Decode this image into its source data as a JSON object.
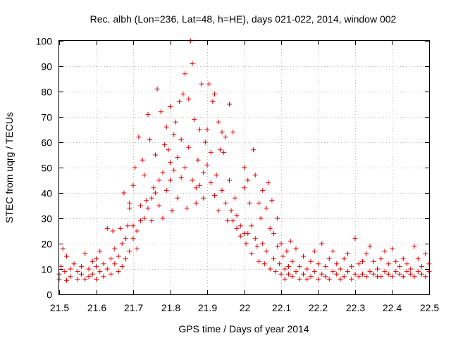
{
  "chart_data": {
    "type": "scatter",
    "title": "Rec. albh (Lon=236, Lat=48, h=HE), days 021-022, 2014, window 002",
    "xlabel": "GPS time / Days of year 2014",
    "ylabel": "STEC from uqrg / TECUs",
    "xlim": [
      21.5,
      22.5
    ],
    "ylim": [
      0,
      100
    ],
    "xticks": [
      "21.5",
      "21.6",
      "21.7",
      "21.8",
      "21.9",
      "22",
      "22.1",
      "22.2",
      "22.3",
      "22.4",
      "22.5"
    ],
    "yticks": [
      "0",
      "10",
      "20",
      "30",
      "40",
      "50",
      "60",
      "70",
      "80",
      "90",
      "100"
    ],
    "marker": "plus",
    "color": "#e00000",
    "grid": true,
    "series": [
      {
        "name": "STEC",
        "points": [
          [
            21.5,
            6
          ],
          [
            21.5,
            8
          ],
          [
            21.505,
            11
          ],
          [
            21.51,
            18
          ],
          [
            21.515,
            9
          ],
          [
            21.52,
            15
          ],
          [
            21.52,
            5.5
          ],
          [
            21.53,
            7
          ],
          [
            21.53,
            10
          ],
          [
            21.54,
            12
          ],
          [
            21.55,
            6
          ],
          [
            21.55,
            9
          ],
          [
            21.56,
            8
          ],
          [
            21.56,
            11
          ],
          [
            21.57,
            16
          ],
          [
            21.57,
            6
          ],
          [
            21.58,
            7
          ],
          [
            21.58,
            10
          ],
          [
            21.59,
            13
          ],
          [
            21.59,
            8
          ],
          [
            21.6,
            6
          ],
          [
            21.6,
            11
          ],
          [
            21.6,
            14
          ],
          [
            21.61,
            9
          ],
          [
            21.61,
            17
          ],
          [
            21.62,
            7
          ],
          [
            21.62,
            12
          ],
          [
            21.63,
            26
          ],
          [
            21.63,
            10
          ],
          [
            21.64,
            14
          ],
          [
            21.64,
            8
          ],
          [
            21.645,
            25
          ],
          [
            21.65,
            18
          ],
          [
            21.65,
            12
          ],
          [
            21.66,
            9
          ],
          [
            21.66,
            15
          ],
          [
            21.665,
            26
          ],
          [
            21.67,
            11
          ],
          [
            21.67,
            20
          ],
          [
            21.675,
            40
          ],
          [
            21.68,
            14
          ],
          [
            21.68,
            22
          ],
          [
            21.685,
            27
          ],
          [
            21.69,
            34
          ],
          [
            21.69,
            17
          ],
          [
            21.69,
            36
          ],
          [
            21.7,
            27
          ],
          [
            21.7,
            22
          ],
          [
            21.7,
            43
          ],
          [
            21.705,
            50
          ],
          [
            21.71,
            25
          ],
          [
            21.71,
            18
          ],
          [
            21.715,
            62
          ],
          [
            21.72,
            35
          ],
          [
            21.72,
            29
          ],
          [
            21.725,
            53
          ],
          [
            21.73,
            47
          ],
          [
            21.73,
            30
          ],
          [
            21.735,
            37
          ],
          [
            21.74,
            71
          ],
          [
            21.74,
            34
          ],
          [
            21.745,
            61
          ],
          [
            21.75,
            38
          ],
          [
            21.75,
            29
          ],
          [
            21.755,
            42
          ],
          [
            21.76,
            55
          ],
          [
            21.76,
            40
          ],
          [
            21.765,
            81
          ],
          [
            21.77,
            45
          ],
          [
            21.77,
            35
          ],
          [
            21.775,
            72
          ],
          [
            21.78,
            48
          ],
          [
            21.78,
            30
          ],
          [
            21.785,
            59
          ],
          [
            21.79,
            66
          ],
          [
            21.79,
            41
          ],
          [
            21.795,
            57
          ],
          [
            21.8,
            74
          ],
          [
            21.8,
            45
          ],
          [
            21.8,
            52
          ],
          [
            21.805,
            33
          ],
          [
            21.81,
            49
          ],
          [
            21.81,
            63
          ],
          [
            21.815,
            68
          ],
          [
            21.82,
            54
          ],
          [
            21.82,
            38
          ],
          [
            21.825,
            76
          ],
          [
            21.83,
            61
          ],
          [
            21.83,
            46
          ],
          [
            21.835,
            79
          ],
          [
            21.84,
            87
          ],
          [
            21.84,
            50
          ],
          [
            21.845,
            34
          ],
          [
            21.85,
            77
          ],
          [
            21.85,
            58
          ],
          [
            21.855,
            100
          ],
          [
            21.86,
            91
          ],
          [
            21.86,
            45
          ],
          [
            21.865,
            69
          ],
          [
            21.87,
            42
          ],
          [
            21.87,
            36
          ],
          [
            21.875,
            53
          ],
          [
            21.88,
            65
          ],
          [
            21.88,
            43
          ],
          [
            21.885,
            83
          ],
          [
            21.89,
            38
          ],
          [
            21.89,
            48
          ],
          [
            21.895,
            60
          ],
          [
            21.9,
            65
          ],
          [
            21.9,
            51
          ],
          [
            21.905,
            83
          ],
          [
            21.91,
            56
          ],
          [
            21.91,
            44
          ],
          [
            21.915,
            76
          ],
          [
            21.92,
            79
          ],
          [
            21.92,
            39
          ],
          [
            21.925,
            47
          ],
          [
            21.93,
            68
          ],
          [
            21.93,
            33
          ],
          [
            21.935,
            57
          ],
          [
            21.94,
            64
          ],
          [
            21.94,
            41
          ],
          [
            21.945,
            56
          ],
          [
            21.95,
            36
          ],
          [
            21.95,
            62
          ],
          [
            21.955,
            29
          ],
          [
            21.96,
            45
          ],
          [
            21.96,
            75
          ],
          [
            21.965,
            33
          ],
          [
            21.97,
            64
          ],
          [
            21.97,
            29
          ],
          [
            21.975,
            38
          ],
          [
            21.98,
            26
          ],
          [
            21.98,
            31
          ],
          [
            21.99,
            23
          ],
          [
            21.99,
            27
          ],
          [
            22.0,
            24
          ],
          [
            22.0,
            50
          ],
          [
            22.0,
            42
          ],
          [
            22.005,
            20
          ],
          [
            22.01,
            45
          ],
          [
            22.01,
            24
          ],
          [
            22.015,
            36
          ],
          [
            22.02,
            16
          ],
          [
            22.02,
            27
          ],
          [
            22.025,
            57
          ],
          [
            22.03,
            47
          ],
          [
            22.03,
            22
          ],
          [
            22.035,
            19
          ],
          [
            22.04,
            36
          ],
          [
            22.04,
            13
          ],
          [
            22.045,
            30
          ],
          [
            22.05,
            41
          ],
          [
            22.05,
            20
          ],
          [
            22.055,
            12
          ],
          [
            22.06,
            34
          ],
          [
            22.06,
            17
          ],
          [
            22.065,
            44
          ],
          [
            22.07,
            10
          ],
          [
            22.07,
            26
          ],
          [
            22.075,
            37
          ],
          [
            22.08,
            24
          ],
          [
            22.08,
            14
          ],
          [
            22.085,
            9
          ],
          [
            22.09,
            30
          ],
          [
            22.09,
            19
          ],
          [
            22.095,
            12
          ],
          [
            22.1,
            8
          ],
          [
            22.1,
            20
          ],
          [
            22.105,
            15
          ],
          [
            22.11,
            10
          ],
          [
            22.11,
            6
          ],
          [
            22.115,
            17
          ],
          [
            22.12,
            11
          ],
          [
            22.12,
            8
          ],
          [
            22.125,
            21
          ],
          [
            22.13,
            7
          ],
          [
            22.13,
            13
          ],
          [
            22.14,
            9
          ],
          [
            22.14,
            18
          ],
          [
            22.15,
            6
          ],
          [
            22.15,
            11
          ],
          [
            22.16,
            15
          ],
          [
            22.16,
            8
          ],
          [
            22.17,
            10
          ],
          [
            22.17,
            6
          ],
          [
            22.18,
            13
          ],
          [
            22.18,
            7
          ],
          [
            22.19,
            9
          ],
          [
            22.19,
            17
          ],
          [
            22.2,
            6
          ],
          [
            22.2,
            12
          ],
          [
            22.21,
            8
          ],
          [
            22.21,
            20
          ],
          [
            22.22,
            7
          ],
          [
            22.22,
            11
          ],
          [
            22.23,
            14
          ],
          [
            22.23,
            6
          ],
          [
            22.24,
            9
          ],
          [
            22.24,
            17
          ],
          [
            22.25,
            8
          ],
          [
            22.25,
            12
          ],
          [
            22.26,
            6
          ],
          [
            22.26,
            10
          ],
          [
            22.27,
            7
          ],
          [
            22.27,
            14
          ],
          [
            22.28,
            9
          ],
          [
            22.28,
            16
          ],
          [
            22.29,
            6
          ],
          [
            22.29,
            11
          ],
          [
            22.3,
            8
          ],
          [
            22.3,
            22
          ],
          [
            22.31,
            7
          ],
          [
            22.31,
            12
          ],
          [
            22.32,
            13
          ],
          [
            22.32,
            8
          ],
          [
            22.33,
            7
          ],
          [
            22.33,
            16
          ],
          [
            22.34,
            9
          ],
          [
            22.34,
            19
          ],
          [
            22.35,
            8
          ],
          [
            22.35,
            13
          ],
          [
            22.36,
            7
          ],
          [
            22.36,
            10
          ],
          [
            22.37,
            14
          ],
          [
            22.37,
            7
          ],
          [
            22.38,
            9
          ],
          [
            22.38,
            17
          ],
          [
            22.39,
            8
          ],
          [
            22.39,
            12
          ],
          [
            22.4,
            7
          ],
          [
            22.4,
            18
          ],
          [
            22.41,
            9
          ],
          [
            22.41,
            13
          ],
          [
            22.42,
            8
          ],
          [
            22.42,
            11
          ],
          [
            22.43,
            14
          ],
          [
            22.43,
            7
          ],
          [
            22.44,
            9
          ],
          [
            22.44,
            12
          ],
          [
            22.45,
            8
          ],
          [
            22.45,
            10
          ],
          [
            22.46,
            7
          ],
          [
            22.46,
            19
          ],
          [
            22.47,
            9
          ],
          [
            22.47,
            14
          ],
          [
            22.48,
            8
          ],
          [
            22.48,
            11
          ],
          [
            22.49,
            7
          ],
          [
            22.49,
            16
          ],
          [
            22.5,
            9
          ],
          [
            22.5,
            12
          ]
        ]
      }
    ]
  }
}
